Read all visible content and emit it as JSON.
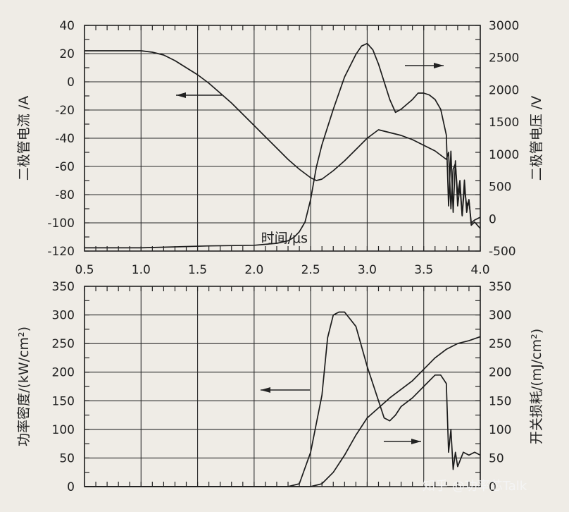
{
  "watermark": "知乎 @功率芯Talk",
  "chart_data": [
    {
      "type": "line",
      "id": "top",
      "xlabel": "时间/μs",
      "ylabel_left": "二极管电流 /A",
      "ylabel_right": "二极管电压 /V",
      "xlim": [
        0.5,
        4.0
      ],
      "ylim_left": [
        -120,
        40
      ],
      "ylim_right": [
        -500,
        3000
      ],
      "x_ticks": [
        "0.5",
        "1.0",
        "1.5",
        "2.0",
        "2.5",
        "3.0",
        "3.5",
        "4.0"
      ],
      "y_ticks_left": [
        "40",
        "20",
        "0",
        "-20",
        "-40",
        "-60",
        "-80",
        "-100",
        "-120"
      ],
      "y_ticks_right": [
        "3000",
        "2500",
        "2000",
        "1500",
        "1000",
        "500",
        "0",
        "-500"
      ],
      "grid": true,
      "series": [
        {
          "axis": "left",
          "x": [
            0.5,
            1.0,
            1.1,
            1.2,
            1.3,
            1.4,
            1.5,
            1.6,
            1.7,
            1.8,
            1.9,
            2.0,
            2.1,
            2.2,
            2.3,
            2.4,
            2.5,
            2.55,
            2.6,
            2.7,
            2.8,
            2.9,
            3.0,
            3.1,
            3.2,
            3.3,
            3.4,
            3.5,
            3.6,
            3.65,
            3.7,
            3.72,
            3.74,
            3.76,
            3.78,
            3.8,
            3.82,
            3.84,
            3.86,
            3.88,
            3.9,
            3.92,
            3.95,
            4.0
          ],
          "y": [
            22,
            22,
            21,
            19,
            15,
            10,
            5,
            -1,
            -8,
            -15,
            -23,
            -31,
            -39,
            -47,
            -55,
            -62,
            -68,
            -70,
            -69,
            -63,
            -56,
            -48,
            -40,
            -34,
            -36,
            -38,
            -41,
            -45,
            -49,
            -52,
            -55,
            -50,
            -90,
            -62,
            -58,
            -80,
            -70,
            -95,
            -75,
            -88,
            -84,
            -100,
            -98,
            -96
          ]
        },
        {
          "axis": "right",
          "x": [
            0.5,
            1.0,
            1.2,
            1.6,
            2.0,
            2.2,
            2.3,
            2.35,
            2.4,
            2.45,
            2.5,
            2.55,
            2.6,
            2.7,
            2.8,
            2.9,
            2.95,
            3.0,
            3.05,
            3.1,
            3.2,
            3.25,
            3.3,
            3.4,
            3.45,
            3.5,
            3.55,
            3.6,
            3.65,
            3.7,
            3.72,
            3.74,
            3.76,
            3.78,
            3.8,
            3.82,
            3.84,
            3.86,
            3.88,
            3.9,
            3.92,
            3.95,
            4.0
          ],
          "y": [
            -450,
            -450,
            -440,
            -420,
            -410,
            -380,
            -340,
            -290,
            -200,
            -50,
            300,
            800,
            1150,
            1700,
            2200,
            2550,
            2680,
            2720,
            2620,
            2400,
            1850,
            1650,
            1700,
            1850,
            1950,
            1950,
            1920,
            1850,
            1700,
            1300,
            200,
            1050,
            100,
            900,
            200,
            500,
            50,
            600,
            100,
            300,
            -100,
            -50,
            -150
          ]
        }
      ],
      "annotations": [
        "arrow-left",
        "arrow-right"
      ]
    },
    {
      "type": "line",
      "id": "bottom",
      "xlabel": "",
      "ylabel_left": "功率密度/(kW/cm²)",
      "ylabel_right": "开关损耗/(mJ/cm²)",
      "xlim": [
        0.5,
        4.0
      ],
      "ylim_left": [
        0,
        350
      ],
      "ylim_right": [
        0,
        350
      ],
      "y_ticks_left": [
        "350",
        "300",
        "250",
        "200",
        "150",
        "100",
        "50",
        "0"
      ],
      "y_ticks_right": [
        "350",
        "300",
        "250",
        "200",
        "150",
        "100",
        "50",
        "0"
      ],
      "grid": true,
      "series": [
        {
          "axis": "left",
          "x": [
            0.5,
            2.3,
            2.4,
            2.5,
            2.6,
            2.65,
            2.7,
            2.75,
            2.8,
            2.9,
            3.0,
            3.1,
            3.15,
            3.2,
            3.25,
            3.3,
            3.4,
            3.5,
            3.6,
            3.65,
            3.7,
            3.72,
            3.74,
            3.76,
            3.78,
            3.8,
            3.85,
            3.9,
            3.95,
            4.0
          ],
          "y": [
            0,
            0,
            5,
            60,
            160,
            260,
            300,
            305,
            305,
            280,
            210,
            150,
            120,
            115,
            125,
            140,
            155,
            175,
            195,
            195,
            180,
            60,
            100,
            30,
            60,
            35,
            60,
            55,
            60,
            55
          ]
        },
        {
          "axis": "right",
          "x": [
            0.5,
            2.5,
            2.6,
            2.7,
            2.8,
            2.9,
            3.0,
            3.2,
            3.4,
            3.5,
            3.6,
            3.7,
            3.8,
            3.9,
            4.0
          ],
          "y": [
            0,
            0,
            5,
            25,
            55,
            90,
            120,
            155,
            185,
            205,
            225,
            240,
            250,
            255,
            262
          ]
        }
      ],
      "annotations": [
        "arrow-left",
        "arrow-right"
      ]
    }
  ]
}
